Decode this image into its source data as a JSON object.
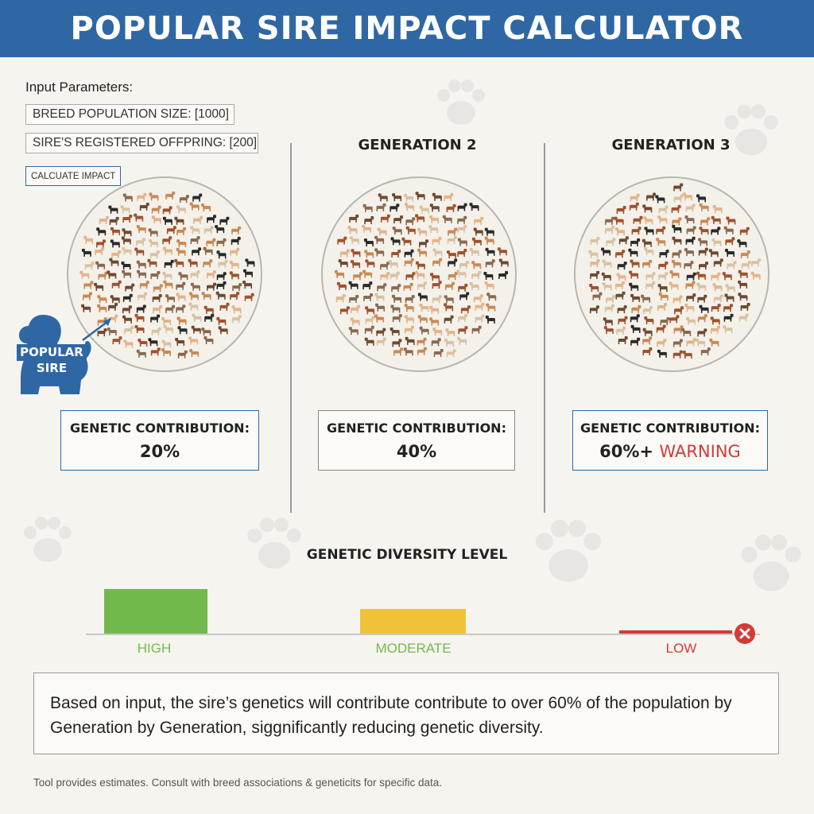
{
  "app": {
    "title": "POPULAR SIRE IMPACT CALCULATOR"
  },
  "inputs": {
    "heading": "Input Parameters:",
    "population_field": "BREED POPULATION SIZE: [1000]",
    "offspring_field": "SIRE'S REGISTERED OFFPRING: [200]",
    "calculate_button": "CALCUATE IMPACT"
  },
  "generations": [
    {
      "title": "",
      "contribution_label": "GENETIC CONTRIBUTION:",
      "value": "20%",
      "warning": ""
    },
    {
      "title": "GENERATION 2",
      "contribution_label": "GENETIC CONTRIBUTION:",
      "value": "40%",
      "warning": ""
    },
    {
      "title": "GENERATION 3",
      "contribution_label": "GENETIC CONTRIBUTION:",
      "value": "60%+",
      "warning": "WARNING"
    }
  ],
  "popular_sire": {
    "label_line1": "POPULAR",
    "label_line2": "SIRE",
    "icon": "dog-silhouette-icon"
  },
  "diversity": {
    "title": "GENETIC DIVERSITY LEVEL",
    "levels": [
      {
        "label": "HIGH",
        "level": 1.0,
        "color": "#72b94d"
      },
      {
        "label": "MODERATE",
        "level": 0.55,
        "color": "#f0c23a"
      },
      {
        "label": "LOW",
        "level": 0.05,
        "color": "#d23b36"
      }
    ],
    "low_icon": "close-icon"
  },
  "summary": "Based on input, the sire’s genetics will contribute contribute to over 60% of the population by Generation by Generation, siggnificantly reducing genetic diversity.",
  "footer": "Tool provides estimates. Consult with breed associations & geneticits for specific data.",
  "colors": {
    "brand": "#2f67a4",
    "warning": "#d23b36",
    "dog_palette": [
      "#a0522d",
      "#c98a55",
      "#e3b48a",
      "#2b2b2b",
      "#6e4a32",
      "#d9c2a3",
      "#8a6a50"
    ]
  }
}
